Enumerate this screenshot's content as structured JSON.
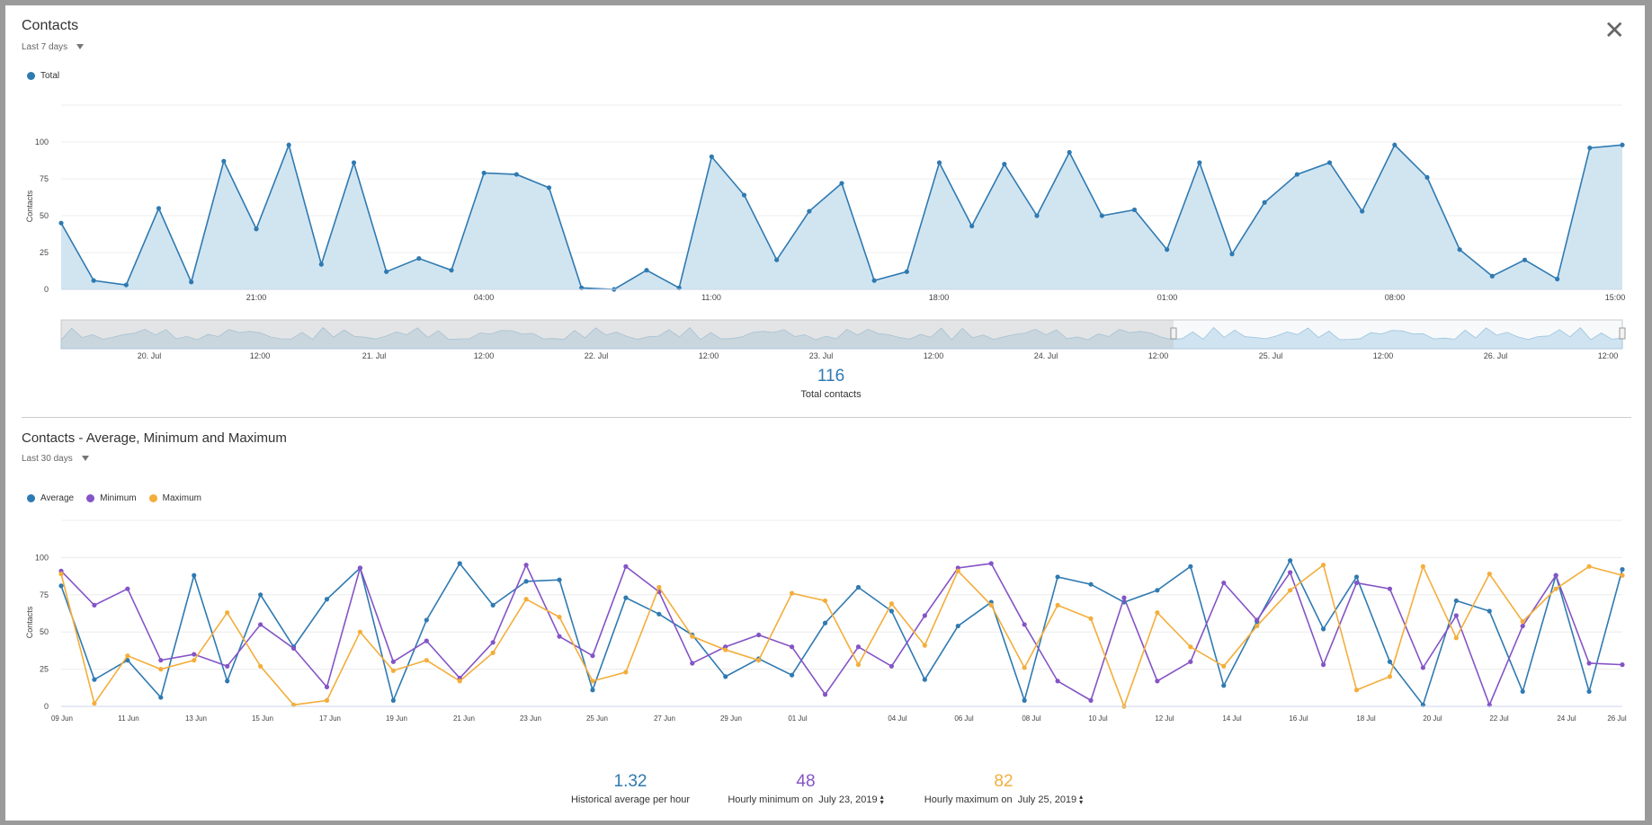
{
  "modal": {
    "close_label": "✕"
  },
  "contacts": {
    "title": "Contacts",
    "range": "Last 7 days",
    "total_value": "116",
    "total_label": "Total contacts",
    "navigator_labels": [
      "20. Jul",
      "12:00",
      "21. Jul",
      "12:00",
      "22. Jul",
      "12:00",
      "23. Jul",
      "12:00",
      "24. Jul",
      "12:00",
      "25. Jul",
      "12:00",
      "26. Jul",
      "12:00"
    ]
  },
  "averages": {
    "title": "Contacts - Average, Minimum and Maximum",
    "range": "Last 30 days",
    "avg_value": "1.32",
    "avg_label": "Historical average per hour",
    "min_value": "48",
    "min_label": "Hourly minimum on",
    "min_date": "July 23, 2019",
    "max_value": "82",
    "max_label": "Hourly maximum on",
    "max_date": "July 25, 2019"
  },
  "colors": {
    "blue": "#2f7ab1",
    "purple": "#8454c6",
    "orange": "#f3ae3b",
    "area": "#d1e5f1"
  },
  "chart_data": [
    {
      "type": "area",
      "title": "Contacts",
      "ylabel": "Contacts",
      "ylim": [
        0,
        125
      ],
      "yticks": [
        0,
        25,
        50,
        75,
        100
      ],
      "xticks": [
        "21:00",
        "04:00",
        "11:00",
        "18:00",
        "01:00",
        "08:00",
        "15:00"
      ],
      "legend": [
        "Total"
      ],
      "series": [
        {
          "name": "Total",
          "values": [
            45,
            6,
            3,
            55,
            5,
            87,
            41,
            98,
            17,
            86,
            12,
            21,
            13,
            79,
            78,
            69,
            1,
            0,
            13,
            1,
            90,
            64,
            20,
            53,
            72,
            6,
            12,
            86,
            43,
            85,
            50,
            93,
            50,
            54,
            27,
            86,
            24,
            59,
            78,
            86,
            53,
            98,
            76,
            27,
            9,
            20,
            7,
            96,
            98
          ]
        }
      ]
    },
    {
      "type": "line",
      "title": "Contacts - Average, Minimum and Maximum",
      "ylabel": "Contacts",
      "ylim": [
        0,
        125
      ],
      "yticks": [
        0,
        25,
        50,
        75,
        100
      ],
      "xticks": [
        "09 Jun",
        "11 Jun",
        "13 Jun",
        "15 Jun",
        "17 Jun",
        "19 Jun",
        "21 Jun",
        "23 Jun",
        "25 Jun",
        "27 Jun",
        "29 Jun",
        "01 Jul",
        "04 Jul",
        "06 Jul",
        "08 Jul",
        "10 Jul",
        "12 Jul",
        "14 Jul",
        "16 Jul",
        "18 Jul",
        "20 Jul",
        "22 Jul",
        "24 Jul",
        "26 Jul"
      ],
      "legend": [
        "Average",
        "Minimum",
        "Maximum"
      ],
      "series": [
        {
          "name": "Average",
          "values": [
            81,
            18,
            31,
            6,
            88,
            17,
            75,
            40,
            72,
            93,
            4,
            58,
            96,
            68,
            84,
            85,
            11,
            73,
            62,
            48,
            20,
            32,
            21,
            56,
            80,
            64,
            18,
            54,
            70,
            4,
            87,
            82,
            70,
            78,
            94,
            14,
            57,
            98,
            52,
            87,
            30,
            1,
            71,
            64,
            10,
            88,
            10,
            92
          ]
        },
        {
          "name": "Minimum",
          "values": [
            91,
            68,
            79,
            31,
            35,
            27,
            55,
            39,
            13,
            93,
            30,
            44,
            19,
            43,
            95,
            47,
            34,
            94,
            77,
            29,
            40,
            48,
            40,
            8,
            40,
            27,
            61,
            93,
            96,
            55,
            17,
            4,
            73,
            17,
            30,
            83,
            58,
            90,
            28,
            83,
            79,
            26,
            61,
            1,
            54,
            88,
            29,
            28
          ]
        },
        {
          "name": "Maximum",
          "values": [
            89,
            2,
            34,
            25,
            31,
            63,
            27,
            1,
            4,
            50,
            24,
            31,
            17,
            36,
            72,
            60,
            17,
            23,
            80,
            47,
            38,
            31,
            76,
            71,
            28,
            69,
            41,
            91,
            68,
            26,
            68,
            59,
            0,
            63,
            40,
            27,
            54,
            78,
            95,
            11,
            20,
            94,
            46,
            89,
            57,
            79,
            94,
            88
          ]
        }
      ]
    }
  ]
}
